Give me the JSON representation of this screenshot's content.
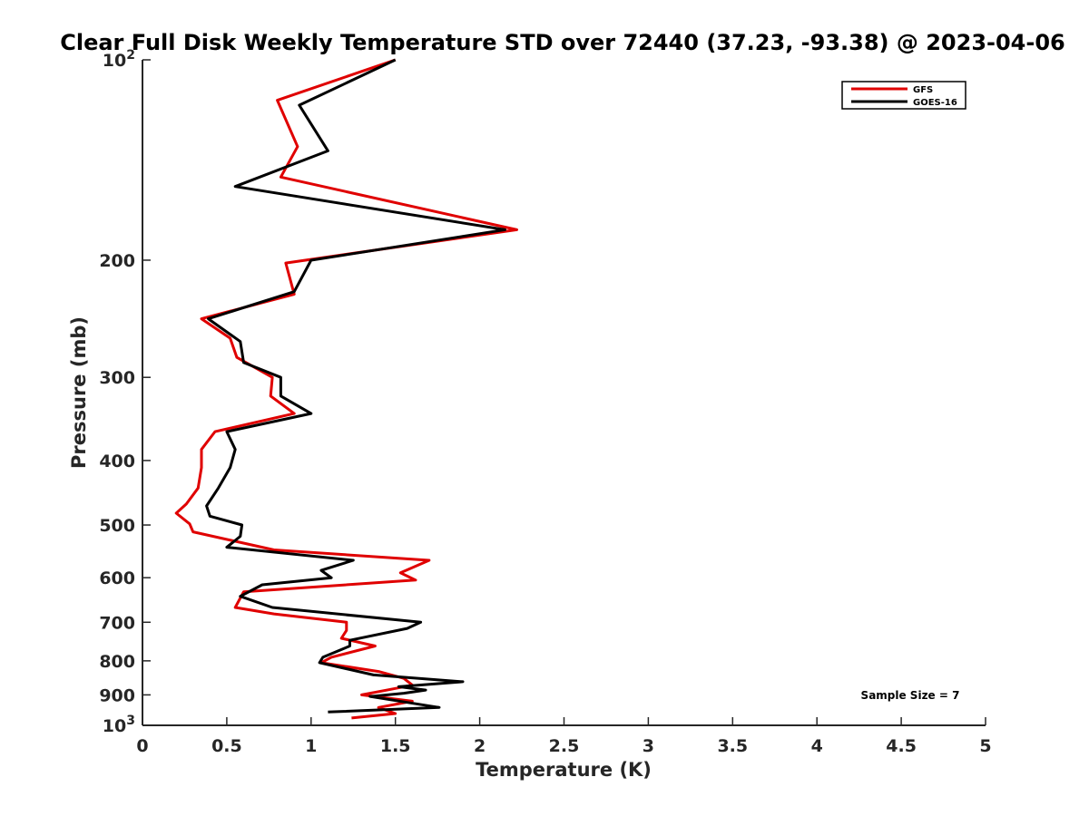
{
  "chart_data": {
    "type": "line",
    "title": "Clear Full Disk Weekly Temperature STD over 72440 (37.23, -93.38) @ 2023-04-06",
    "xlabel": "Temperature (K)",
    "ylabel": "Pressure (mb)",
    "xlim": [
      0,
      5
    ],
    "ylim": [
      100,
      1000
    ],
    "y_scale": "log",
    "y_reversed": true,
    "grid": false,
    "legend_position": "top-right",
    "x_ticks": [
      0,
      0.5,
      1,
      1.5,
      2,
      2.5,
      3,
      3.5,
      4,
      4.5,
      5
    ],
    "x_tick_labels": [
      "0",
      "0.5",
      "1",
      "1.5",
      "2",
      "2.5",
      "3",
      "3.5",
      "4",
      "4.5",
      "5"
    ],
    "y_ticks": [
      100,
      200,
      300,
      400,
      500,
      600,
      700,
      800,
      900,
      1000
    ],
    "y_tick_labels": [
      {
        "base": "10",
        "exp": "2"
      },
      {
        "base": "200",
        "exp": ""
      },
      {
        "base": "300",
        "exp": ""
      },
      {
        "base": "400",
        "exp": ""
      },
      {
        "base": "500",
        "exp": ""
      },
      {
        "base": "600",
        "exp": ""
      },
      {
        "base": "700",
        "exp": ""
      },
      {
        "base": "800",
        "exp": ""
      },
      {
        "base": "900",
        "exp": ""
      },
      {
        "base": "10",
        "exp": "3"
      }
    ],
    "annotation": "Sample Size = 7",
    "series": [
      {
        "name": "GFS",
        "color": "#e00000",
        "points": [
          [
            1.5,
            100
          ],
          [
            0.8,
            115
          ],
          [
            0.92,
            135
          ],
          [
            0.82,
            150
          ],
          [
            2.22,
            180
          ],
          [
            0.85,
            202
          ],
          [
            0.9,
            225
          ],
          [
            0.35,
            245
          ],
          [
            0.52,
            262
          ],
          [
            0.56,
            280
          ],
          [
            0.77,
            300
          ],
          [
            0.76,
            320
          ],
          [
            0.9,
            340
          ],
          [
            0.43,
            362
          ],
          [
            0.35,
            385
          ],
          [
            0.35,
            410
          ],
          [
            0.33,
            440
          ],
          [
            0.26,
            465
          ],
          [
            0.2,
            480
          ],
          [
            0.28,
            498
          ],
          [
            0.3,
            512
          ],
          [
            0.78,
            545
          ],
          [
            1.7,
            565
          ],
          [
            1.53,
            590
          ],
          [
            1.62,
            605
          ],
          [
            0.6,
            630
          ],
          [
            0.55,
            665
          ],
          [
            0.78,
            680
          ],
          [
            1.21,
            700
          ],
          [
            1.21,
            720
          ],
          [
            1.18,
            740
          ],
          [
            1.38,
            760
          ],
          [
            1.12,
            790
          ],
          [
            1.06,
            805
          ],
          [
            1.4,
            830
          ],
          [
            1.55,
            850
          ],
          [
            1.6,
            870
          ],
          [
            1.5,
            880
          ],
          [
            1.3,
            900
          ],
          [
            1.6,
            920
          ],
          [
            1.4,
            940
          ],
          [
            1.5,
            960
          ],
          [
            1.24,
            975
          ]
        ]
      },
      {
        "name": "GOES-16",
        "color": "#000000",
        "points": [
          [
            1.5,
            100
          ],
          [
            0.93,
            117
          ],
          [
            1.1,
            137
          ],
          [
            0.55,
            155
          ],
          [
            2.15,
            180
          ],
          [
            1.0,
            200
          ],
          [
            0.9,
            223
          ],
          [
            0.39,
            245
          ],
          [
            0.58,
            265
          ],
          [
            0.6,
            285
          ],
          [
            0.82,
            300
          ],
          [
            0.82,
            320
          ],
          [
            1.0,
            340
          ],
          [
            0.5,
            362
          ],
          [
            0.55,
            385
          ],
          [
            0.52,
            410
          ],
          [
            0.45,
            440
          ],
          [
            0.38,
            468
          ],
          [
            0.4,
            485
          ],
          [
            0.59,
            500
          ],
          [
            0.58,
            520
          ],
          [
            0.5,
            540
          ],
          [
            1.25,
            565
          ],
          [
            1.06,
            585
          ],
          [
            1.12,
            600
          ],
          [
            0.71,
            615
          ],
          [
            0.58,
            640
          ],
          [
            0.77,
            665
          ],
          [
            1.65,
            700
          ],
          [
            1.57,
            715
          ],
          [
            1.23,
            745
          ],
          [
            1.23,
            760
          ],
          [
            1.07,
            790
          ],
          [
            1.05,
            805
          ],
          [
            1.37,
            840
          ],
          [
            1.9,
            860
          ],
          [
            1.52,
            875
          ],
          [
            1.68,
            885
          ],
          [
            1.55,
            895
          ],
          [
            1.35,
            905
          ],
          [
            1.76,
            940
          ],
          [
            1.1,
            955
          ]
        ]
      }
    ]
  }
}
